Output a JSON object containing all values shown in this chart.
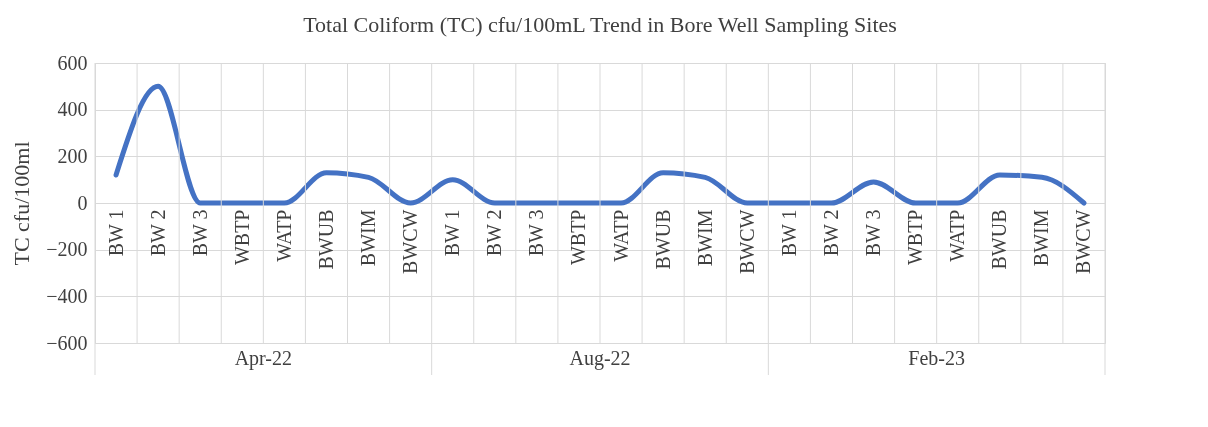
{
  "chart_data": {
    "type": "line",
    "title": "Total Coliform (TC) cfu/100mL Trend in Bore Well  Sampling Sites",
    "ylabel": "TC cfu/100ml",
    "categories": [
      "BW 1",
      "BW 2",
      "BW 3",
      "WBTP",
      "WATP",
      "BWUB",
      "BWIM",
      "BWCW",
      "BW 1",
      "BW 2",
      "BW 3",
      "WBTP",
      "WATP",
      "BWUB",
      "BWIM",
      "BWCW",
      "BW 1",
      "BW 2",
      "BW 3",
      "WBTP",
      "WATP",
      "BWUB",
      "BWIM",
      "BWCW"
    ],
    "series": [
      {
        "color": "#4472c4",
        "values": [
          120,
          500,
          0,
          0,
          0,
          130,
          110,
          0,
          100,
          0,
          0,
          0,
          0,
          130,
          110,
          0,
          0,
          0,
          90,
          0,
          0,
          120,
          110,
          0
        ]
      }
    ],
    "annotations": [
      "Apr-22",
      "Aug-22",
      "Feb-23"
    ],
    "ylim": [
      -600,
      600
    ],
    "yticks": [
      -600,
      -400,
      -200,
      0,
      200,
      400,
      600
    ],
    "grid": true,
    "legend": false,
    "marker": "none",
    "line_style": "solid"
  }
}
